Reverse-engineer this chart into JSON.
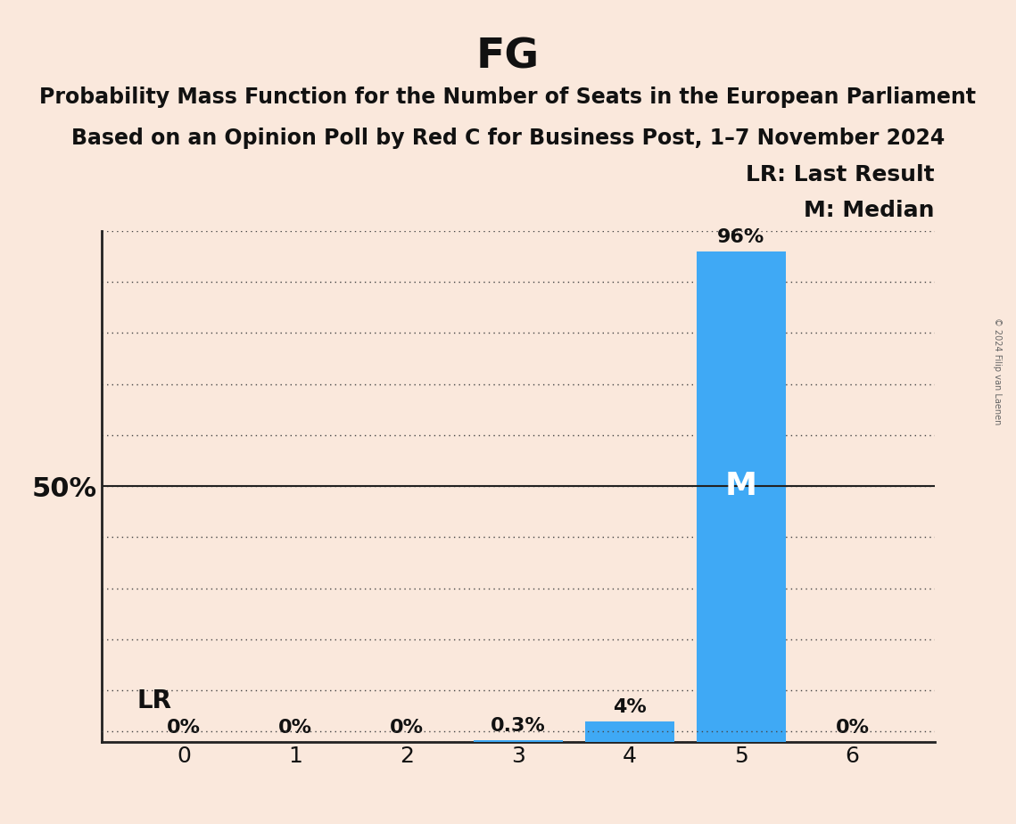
{
  "title": "FG",
  "subtitle1": "Probability Mass Function for the Number of Seats in the European Parliament",
  "subtitle2": "Based on an Opinion Poll by Red C for Business Post, 1–7 November 2024",
  "categories": [
    0,
    1,
    2,
    3,
    4,
    5,
    6
  ],
  "values": [
    0.0,
    0.0,
    0.0,
    0.3,
    4.0,
    96.0,
    0.0
  ],
  "bar_color": "#3fa9f5",
  "background_color": "#FAE8DC",
  "bar_labels": [
    "0%",
    "0%",
    "0%",
    "0.3%",
    "4%",
    "96%",
    "0%"
  ],
  "last_result_seat": 0,
  "median_seat": 5,
  "ylim": [
    0,
    100
  ],
  "yticks": [
    0,
    10,
    20,
    30,
    40,
    50,
    60,
    70,
    80,
    90,
    100
  ],
  "grid_color": "#444444",
  "fifty_line_color": "#222222",
  "legend_text_lr": "LR: Last Result",
  "legend_text_m": "M: Median",
  "copyright_text": "© 2024 Filip van Laenen",
  "title_fontsize": 34,
  "subtitle_fontsize": 17,
  "axis_tick_fontsize": 18,
  "bar_label_fontsize": 16,
  "legend_fontsize": 18,
  "lr_label_fontsize": 20,
  "median_label_color": "#ffffff",
  "median_label_fontsize": 26,
  "fifty_label_fontsize": 22,
  "text_color": "#111111"
}
